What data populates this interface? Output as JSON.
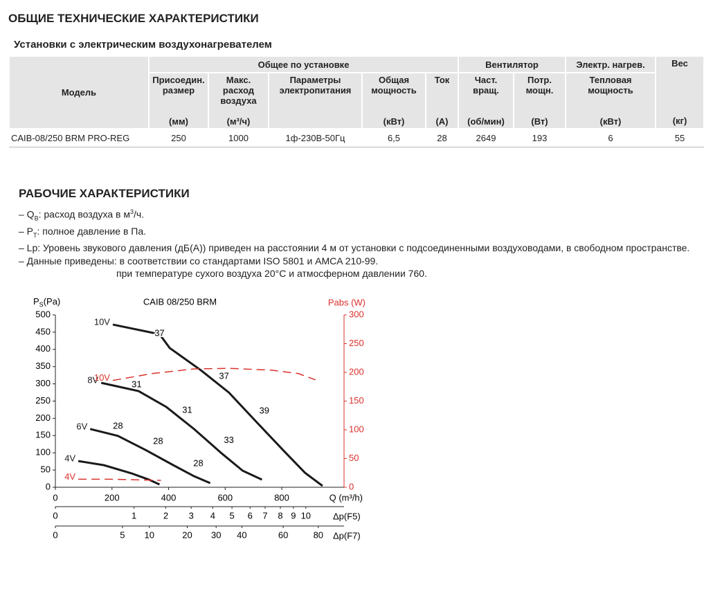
{
  "header": {
    "title": "ОБЩИЕ ТЕХНИЧЕСКИЕ ХАРАКТЕРИСТИКИ"
  },
  "table": {
    "title": "Установки с электрическим воздухонагревателем",
    "model_header": "Модель",
    "groups": [
      "Общее по установке",
      "Вентилятор",
      "Электр. нагрев.",
      "Вес"
    ],
    "columns": [
      {
        "name": "Присоедин. размер",
        "unit": "(мм)"
      },
      {
        "name": "Макс. расход воздуха",
        "unit": "(м³/ч)"
      },
      {
        "name": "Параметры электропитания"
      },
      {
        "name": "Общая мощность",
        "unit": "(кВт)"
      },
      {
        "name": "Ток",
        "unit": "(A)"
      },
      {
        "name": "Част. вращ.",
        "unit": "(об/мин)"
      },
      {
        "name": "Потр. мощн.",
        "unit": "(Вт)"
      },
      {
        "name": "Тепловая мощность",
        "unit": "(кВт)"
      },
      {
        "unit": "(кг)"
      }
    ],
    "rows": [
      [
        "CAIB-08/250 BRM PRO-REG",
        "250",
        "1000",
        "1ф-230В-50Гц",
        "6,5",
        "28",
        "2649",
        "193",
        "6",
        "55"
      ]
    ]
  },
  "section": {
    "title": "РАБОЧИЕ ХАРАКТЕРИСТИКИ",
    "notes": [
      [
        "– Q",
        "В",
        ": расход воздуха в м",
        "3",
        "/ч."
      ],
      [
        "– P",
        "T",
        ": полное давление в Па."
      ],
      [
        "– Lp: Уровень звукового давления (дБ(A)) приведен на расстоянии 4 м от установки с подсоединенными воздуховодами, в свободном пространстве."
      ],
      [
        "– Данные приведены:  в соответствии со стандартами ISO 5801 и AMCA 210-99."
      ],
      [
        "при температуре сухого воздуха 20°C и атмосферном давлении 760."
      ]
    ]
  },
  "chart_data": {
    "type": "line",
    "title": "CAIB 08/250 BRM",
    "y_label": "P",
    "y_label_sub": "S",
    "y_label_unit": "(Pa)",
    "y2_label": "Pabs (W)",
    "x_label": "Q (m³/h)",
    "xlim": [
      0,
      1020
    ],
    "xticks": [
      0,
      200,
      400,
      600,
      800
    ],
    "ylim": [
      0,
      500
    ],
    "yticks": [
      0,
      50,
      100,
      150,
      200,
      250,
      300,
      350,
      400,
      450,
      500
    ],
    "y2lim": [
      0,
      300
    ],
    "y2ticks": [
      0,
      50,
      100,
      150,
      200,
      250,
      300
    ],
    "series": [
      {
        "name": "10V",
        "color": "#1a1a1a",
        "x": [
          203,
          368,
          404,
          515,
          613,
          711,
          809,
          882,
          944
        ],
        "values": [
          472,
          444,
          404,
          339,
          275,
          189,
          104,
          42,
          4
        ]
      },
      {
        "name": "8V",
        "color": "#1a1a1a",
        "x": [
          162,
          294,
          392,
          490,
          588,
          662,
          730
        ],
        "values": [
          303,
          279,
          233,
          169,
          98,
          48,
          22
        ]
      },
      {
        "name": "6V",
        "color": "#1a1a1a",
        "x": [
          123,
          221,
          319,
          417,
          490,
          547
        ],
        "values": [
          169,
          149,
          108,
          64,
          32,
          12
        ]
      },
      {
        "name": "4V",
        "color": "#1a1a1a",
        "x": [
          81,
          172,
          270,
          331,
          368
        ],
        "values": [
          76,
          64,
          40,
          22,
          8
        ]
      },
      {
        "name": "10V",
        "color": "#d9312b",
        "axis": "y2",
        "style": "dashed",
        "x": [
          203,
          343,
          490,
          613,
          760,
          858,
          919
        ],
        "values": [
          186,
          198,
          206,
          207,
          204,
          198,
          187
        ]
      },
      {
        "name": "4V",
        "color": "#d9312b",
        "axis": "y2",
        "style": "dashed",
        "x": [
          81,
          196,
          373
        ],
        "values": [
          14,
          14,
          12
        ]
      }
    ],
    "annotations": [
      {
        "text": "37",
        "x": 368,
        "y": 446
      },
      {
        "text": "37",
        "x": 596,
        "y": 321
      },
      {
        "text": "39",
        "x": 738,
        "y": 221
      },
      {
        "text": "31",
        "x": 287,
        "y": 297
      },
      {
        "text": "31",
        "x": 466,
        "y": 223
      },
      {
        "text": "33",
        "x": 613,
        "y": 135
      },
      {
        "text": "28",
        "x": 221,
        "y": 177
      },
      {
        "text": "28",
        "x": 363,
        "y": 132
      },
      {
        "text": "28",
        "x": 505,
        "y": 68
      }
    ],
    "filter_scales": [
      {
        "name": "Δp(F5)",
        "x": [
          0,
          278,
          390,
          480,
          556,
          624,
          688,
          741,
          795,
          841,
          885
        ],
        "values": [
          0,
          1,
          2,
          3,
          4,
          5,
          6,
          7,
          8,
          9,
          10
        ]
      },
      {
        "name": "Δp(F7)",
        "x": [
          0,
          237,
          332,
          466,
          568,
          659,
          805,
          929
        ],
        "values": [
          0,
          5,
          10,
          20,
          30,
          40,
          60,
          80
        ]
      }
    ]
  }
}
